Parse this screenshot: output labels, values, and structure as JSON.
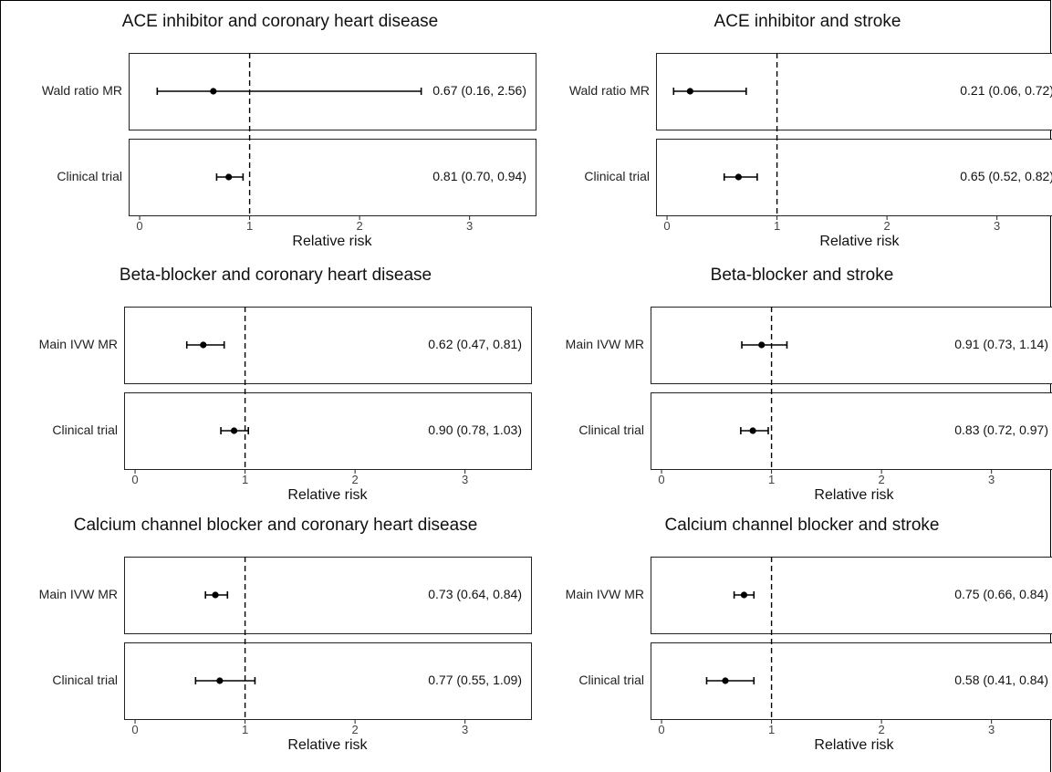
{
  "chart_data": [
    {
      "type": "forest",
      "title": "ACE inhibitor and coronary heart disease",
      "xlabel": "Relative risk",
      "xlim": [
        -0.1,
        3.6
      ],
      "xticks": [
        0,
        1,
        2,
        3
      ],
      "reference_line": 1,
      "rows": [
        {
          "label": "Wald ratio MR",
          "estimate": 0.67,
          "lower": 0.16,
          "upper": 2.56,
          "text": "0.67 (0.16, 2.56)"
        },
        {
          "label": "Clinical trial",
          "estimate": 0.81,
          "lower": 0.7,
          "upper": 0.94,
          "text": "0.81 (0.70, 0.94)"
        }
      ]
    },
    {
      "type": "forest",
      "title": "ACE inhibitor and stroke",
      "xlabel": "Relative risk",
      "xlim": [
        -0.1,
        3.6
      ],
      "xticks": [
        0,
        1,
        2,
        3
      ],
      "reference_line": 1,
      "rows": [
        {
          "label": "Wald ratio MR",
          "estimate": 0.21,
          "lower": 0.06,
          "upper": 0.72,
          "text": "0.21 (0.06, 0.72)"
        },
        {
          "label": "Clinical trial",
          "estimate": 0.65,
          "lower": 0.52,
          "upper": 0.82,
          "text": "0.65 (0.52, 0.82)"
        }
      ]
    },
    {
      "type": "forest",
      "title": "Beta-blocker and coronary heart disease",
      "xlabel": "Relative risk",
      "xlim": [
        -0.1,
        3.6
      ],
      "xticks": [
        0,
        1,
        2,
        3
      ],
      "reference_line": 1,
      "rows": [
        {
          "label": "Main IVW MR",
          "estimate": 0.62,
          "lower": 0.47,
          "upper": 0.81,
          "text": "0.62 (0.47, 0.81)"
        },
        {
          "label": "Clinical trial",
          "estimate": 0.9,
          "lower": 0.78,
          "upper": 1.03,
          "text": "0.90 (0.78, 1.03)"
        }
      ]
    },
    {
      "type": "forest",
      "title": "Beta-blocker and stroke",
      "xlabel": "Relative risk",
      "xlim": [
        -0.1,
        3.6
      ],
      "xticks": [
        0,
        1,
        2,
        3
      ],
      "reference_line": 1,
      "rows": [
        {
          "label": "Main IVW MR",
          "estimate": 0.91,
          "lower": 0.73,
          "upper": 1.14,
          "text": "0.91 (0.73, 1.14)"
        },
        {
          "label": "Clinical trial",
          "estimate": 0.83,
          "lower": 0.72,
          "upper": 0.97,
          "text": "0.83 (0.72, 0.97)"
        }
      ]
    },
    {
      "type": "forest",
      "title": "Calcium channel blocker and coronary heart disease",
      "xlabel": "Relative risk",
      "xlim": [
        -0.1,
        3.6
      ],
      "xticks": [
        0,
        1,
        2,
        3
      ],
      "reference_line": 1,
      "rows": [
        {
          "label": "Main IVW MR",
          "estimate": 0.73,
          "lower": 0.64,
          "upper": 0.84,
          "text": "0.73 (0.64, 0.84)"
        },
        {
          "label": "Clinical trial",
          "estimate": 0.77,
          "lower": 0.55,
          "upper": 1.09,
          "text": "0.77 (0.55, 1.09)"
        }
      ]
    },
    {
      "type": "forest",
      "title": "Calcium channel blocker and stroke",
      "xlabel": "Relative risk",
      "xlim": [
        -0.1,
        3.6
      ],
      "xticks": [
        0,
        1,
        2,
        3
      ],
      "reference_line": 1,
      "rows": [
        {
          "label": "Main IVW MR",
          "estimate": 0.75,
          "lower": 0.66,
          "upper": 0.84,
          "text": "0.75 (0.66, 0.84)"
        },
        {
          "label": "Clinical trial",
          "estimate": 0.58,
          "lower": 0.41,
          "upper": 0.84,
          "text": "0.58 (0.41, 0.84)"
        }
      ]
    }
  ]
}
